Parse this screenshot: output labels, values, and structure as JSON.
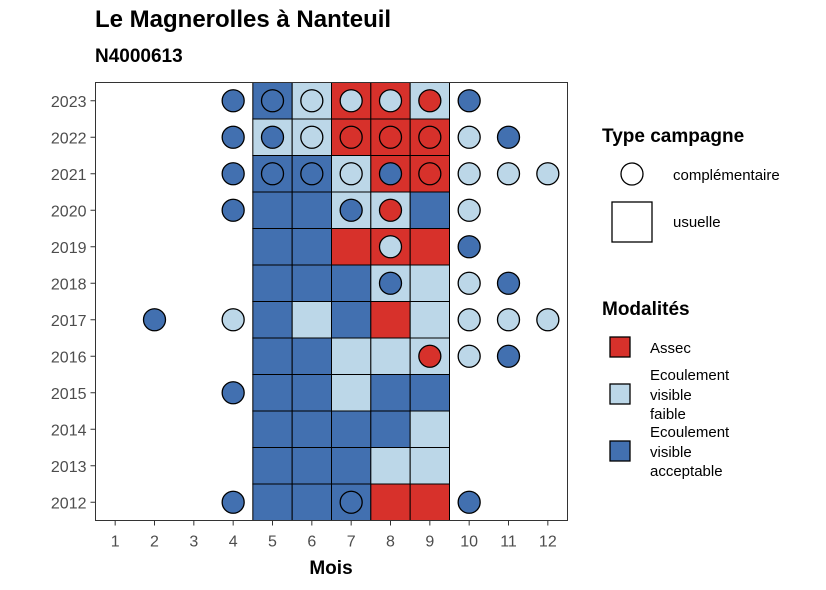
{
  "chart_data": {
    "type": "heatmap",
    "title": "Le Magnerolles à Nanteuil",
    "subtitle": "N4000613",
    "xlabel": "Mois",
    "ylabel": "",
    "x_ticks": [
      "1",
      "2",
      "3",
      "4",
      "5",
      "6",
      "7",
      "8",
      "9",
      "10",
      "11",
      "12"
    ],
    "y_ticks": [
      "2012",
      "2013",
      "2014",
      "2015",
      "2016",
      "2017",
      "2018",
      "2019",
      "2020",
      "2021",
      "2022",
      "2023"
    ],
    "grid": false,
    "legend_position": "right",
    "colors": {
      "assec": "#d7312b",
      "ecoulement_faible": "#bcd7e8",
      "ecoulement_acceptable": "#4270b0"
    },
    "legend_type": {
      "title": "Type campagne",
      "items": [
        {
          "label": "complémentaire",
          "shape": "circle"
        },
        {
          "label": "usuelle",
          "shape": "square"
        }
      ]
    },
    "legend_modalites": {
      "title": "Modalités",
      "items": [
        {
          "key": "A",
          "lines": [
            "Assec"
          ]
        },
        {
          "key": "F",
          "lines": [
            "Ecoulement",
            "visible",
            "faible"
          ]
        },
        {
          "key": "E",
          "lines": [
            "Ecoulement",
            "visible",
            "acceptable"
          ]
        }
      ]
    },
    "usuelle": [
      {
        "year": 2023,
        "months": {
          "5": "E",
          "6": "F",
          "7": "A",
          "8": "A",
          "9": "F"
        }
      },
      {
        "year": 2022,
        "months": {
          "5": "F",
          "6": "F",
          "7": "A",
          "8": "A",
          "9": "A"
        }
      },
      {
        "year": 2021,
        "months": {
          "5": "E",
          "6": "E",
          "7": "F",
          "8": "A",
          "9": "A"
        }
      },
      {
        "year": 2020,
        "months": {
          "5": "E",
          "6": "E",
          "7": "F",
          "8": "F",
          "9": "E"
        }
      },
      {
        "year": 2019,
        "months": {
          "5": "E",
          "6": "E",
          "7": "A",
          "8": "A",
          "9": "A"
        }
      },
      {
        "year": 2018,
        "months": {
          "5": "E",
          "6": "E",
          "7": "E",
          "8": "F",
          "9": "F"
        }
      },
      {
        "year": 2017,
        "months": {
          "5": "E",
          "6": "F",
          "7": "E",
          "8": "A",
          "9": "F"
        }
      },
      {
        "year": 2016,
        "months": {
          "5": "E",
          "6": "E",
          "7": "F",
          "8": "F",
          "9": "F"
        }
      },
      {
        "year": 2015,
        "months": {
          "5": "E",
          "6": "E",
          "7": "F",
          "8": "E",
          "9": "E"
        }
      },
      {
        "year": 2014,
        "months": {
          "5": "E",
          "6": "E",
          "7": "E",
          "8": "E",
          "9": "F"
        }
      },
      {
        "year": 2013,
        "months": {
          "5": "E",
          "6": "E",
          "7": "E",
          "8": "F",
          "9": "F"
        }
      },
      {
        "year": 2012,
        "months": {
          "5": "E",
          "6": "E",
          "7": "E",
          "8": "A",
          "9": "A"
        }
      }
    ],
    "complementaire": [
      {
        "year": 2023,
        "months": {
          "4": "E",
          "5": "E",
          "6": "F",
          "7": "F",
          "8": "F",
          "9": "A",
          "10": "E"
        }
      },
      {
        "year": 2022,
        "months": {
          "4": "E",
          "5": "E",
          "6": "F",
          "7": "A",
          "8": "A",
          "9": "A",
          "10": "F",
          "11": "E"
        }
      },
      {
        "year": 2021,
        "months": {
          "4": "E",
          "5": "E",
          "6": "E",
          "7": "F",
          "8": "E",
          "9": "A",
          "10": "F",
          "11": "F",
          "12": "F"
        }
      },
      {
        "year": 2020,
        "months": {
          "4": "E",
          "7": "E",
          "8": "A",
          "10": "F"
        }
      },
      {
        "year": 2019,
        "months": {
          "8": "F",
          "10": "E"
        }
      },
      {
        "year": 2018,
        "months": {
          "8": "E",
          "10": "F",
          "11": "E"
        }
      },
      {
        "year": 2017,
        "months": {
          "2": "E",
          "4": "F",
          "10": "F",
          "11": "F",
          "12": "F"
        }
      },
      {
        "year": 2016,
        "months": {
          "9": "A",
          "10": "F",
          "11": "E"
        }
      },
      {
        "year": 2015,
        "months": {
          "4": "E"
        }
      },
      {
        "year": 2012,
        "months": {
          "4": "E",
          "7": "E",
          "10": "E"
        }
      }
    ]
  }
}
